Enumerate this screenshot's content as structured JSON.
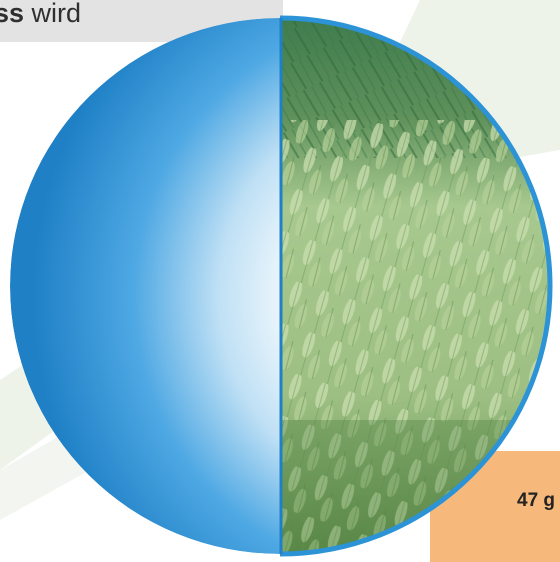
{
  "banner": {
    "bold_text": "ss",
    "normal_text": " wird"
  },
  "weight_label": "47 g",
  "colors": {
    "banner_bg": "#e3e3e3",
    "orange": "#f6b97b",
    "blue": "#2c93d6",
    "blue_dark": "#1f80c6",
    "grass_light": "#a9c98a",
    "grass_dark": "#4f7a3b",
    "background_stripes": "#eef3ea"
  },
  "illustration": {
    "left_half": "water-sphere-half",
    "right_half": "wheat-field-half"
  }
}
